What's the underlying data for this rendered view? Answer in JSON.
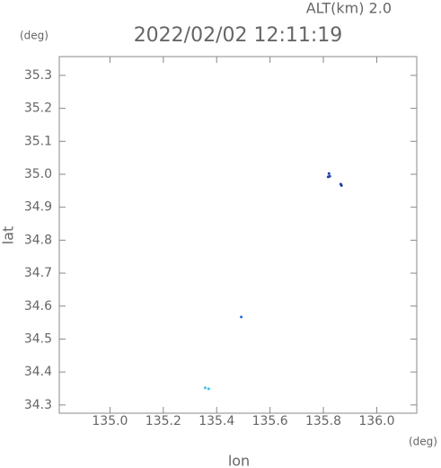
{
  "chart_data": {
    "type": "scatter",
    "title": "2022/02/02 12:11:19",
    "subtitle": "ALT(km) 2.0",
    "y_unit": "(deg)",
    "x_unit": "(deg)",
    "xlabel": "lon",
    "ylabel": "lat",
    "xlim": [
      134.81,
      136.15
    ],
    "ylim": [
      34.275,
      35.357
    ],
    "xticks": [
      {
        "value": 135.0,
        "label": "135.0"
      },
      135.2,
      135.4,
      135.6,
      135.8,
      {
        "value": 136.0,
        "label": "136.0"
      }
    ],
    "yticks": [
      34.3,
      34.4,
      34.5,
      34.6,
      34.7,
      34.8,
      34.9,
      {
        "value": 35.0,
        "label": "35.0"
      },
      35.1,
      35.2,
      35.3
    ],
    "series": [
      {
        "color": "#1f3fa8",
        "x": [
          135.818,
          135.824,
          135.821,
          135.865,
          135.868
        ],
        "y": [
          34.992,
          34.994,
          35.002,
          34.97,
          34.966
        ]
      },
      {
        "color": "#2a6ae0",
        "x": [
          135.492
        ],
        "y": [
          34.567
        ]
      },
      {
        "color": "#3fc0e8",
        "x": [
          135.357,
          135.37
        ],
        "y": [
          34.352,
          34.349
        ]
      }
    ]
  }
}
